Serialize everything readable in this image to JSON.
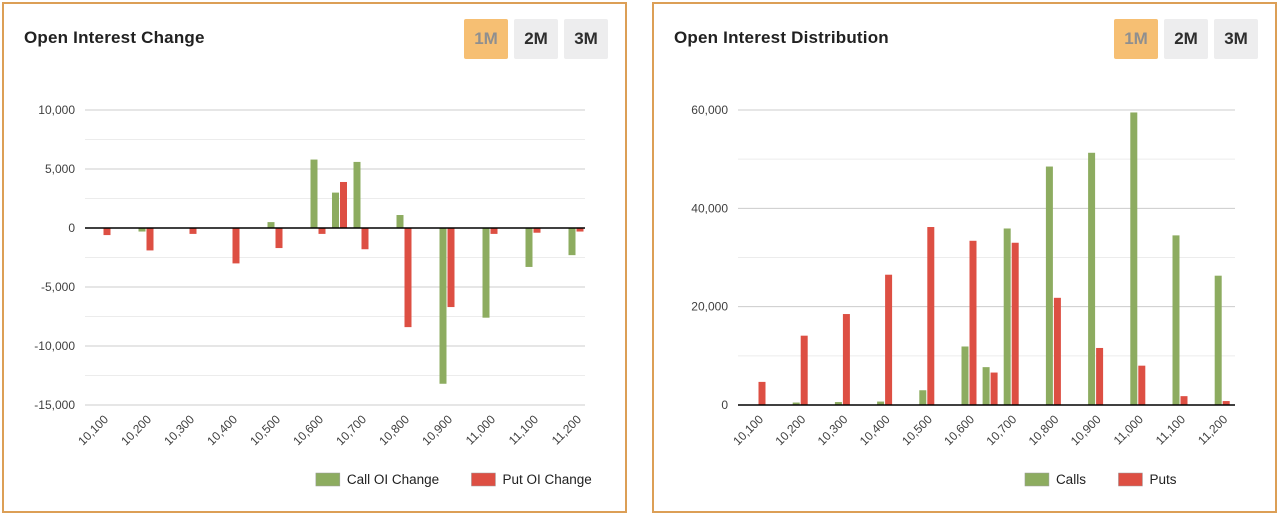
{
  "colors": {
    "call_green": "#8dac60",
    "put_red": "#dd4f43",
    "card_border": "#dc9f56",
    "active_button_bg": "#f6bf73",
    "inactive_button_bg": "#ededee",
    "major_gridline": "#cccccc",
    "minor_gridline": "#ececec",
    "zero_line": "#000000",
    "axis_label": "#404040"
  },
  "panels": [
    {
      "title": "Open Interest Change",
      "buttons": [
        "1M",
        "2M",
        "3M"
      ],
      "active_button": "1M"
    },
    {
      "title": "Open Interest Distribution",
      "buttons": [
        "1M",
        "2M",
        "3M"
      ],
      "active_button": "1M"
    }
  ],
  "chart_data": [
    {
      "type": "bar",
      "title": "Open Interest Change",
      "x": [
        10100,
        10200,
        10300,
        10400,
        10500,
        10600,
        10650,
        10700,
        10800,
        10900,
        11000,
        11100,
        11200
      ],
      "x_tick_values": [
        10100,
        10200,
        10300,
        10400,
        10500,
        10600,
        10700,
        10800,
        10900,
        11000,
        11100,
        11200
      ],
      "x_tick_labels": [
        "10,100",
        "10,200",
        "10,300",
        "10,400",
        "10,500",
        "10,600",
        "10,700",
        "10,800",
        "10,900",
        "11,000",
        "11,100",
        "11,200"
      ],
      "series": [
        {
          "name": "Call OI Change",
          "color": "#8dac60",
          "values": [
            0,
            -300,
            0,
            0,
            500,
            5800,
            3000,
            5600,
            1100,
            -13200,
            -7600,
            -3300,
            -2300
          ]
        },
        {
          "name": "Put OI Change",
          "color": "#dd4f43",
          "values": [
            -600,
            -1900,
            -500,
            -3000,
            -1700,
            -500,
            3900,
            -1800,
            -8400,
            -6700,
            -500,
            -400,
            -300
          ]
        }
      ],
      "ylim": [
        -15000,
        10000
      ],
      "y_major_ticks": [
        10000,
        5000,
        0,
        -5000,
        -10000,
        -15000
      ],
      "y_tick_labels": [
        "10,000",
        "5,000",
        "0",
        "-5,000",
        "-10,000",
        "-15,000"
      ],
      "y_minor_step": 2500,
      "grid": true,
      "legend_position": "bottom"
    },
    {
      "type": "bar",
      "title": "Open Interest Distribution",
      "x": [
        10100,
        10200,
        10300,
        10400,
        10500,
        10600,
        10650,
        10700,
        10800,
        10900,
        11000,
        11100,
        11200
      ],
      "x_tick_values": [
        10100,
        10200,
        10300,
        10400,
        10500,
        10600,
        10700,
        10800,
        10900,
        11000,
        11100,
        11200
      ],
      "x_tick_labels": [
        "10,100",
        "10,200",
        "10,300",
        "10,400",
        "10,500",
        "10,600",
        "10,700",
        "10,800",
        "10,900",
        "11,000",
        "11,100",
        "11,200"
      ],
      "series": [
        {
          "name": "Calls",
          "color": "#8dac60",
          "values": [
            100,
            500,
            600,
            700,
            3000,
            11900,
            7700,
            35900,
            48500,
            51300,
            59500,
            34500,
            26300
          ]
        },
        {
          "name": "Puts",
          "color": "#dd4f43",
          "values": [
            4700,
            14100,
            18500,
            26500,
            36200,
            33400,
            6600,
            33000,
            21800,
            11600,
            8000,
            1800,
            800
          ]
        }
      ],
      "ylim": [
        0,
        60000
      ],
      "y_major_ticks": [
        0,
        20000,
        40000,
        60000
      ],
      "y_tick_labels": [
        "0",
        "20,000",
        "40,000",
        "60,000"
      ],
      "y_minor_step": 10000,
      "grid": true,
      "legend_position": "bottom"
    }
  ]
}
